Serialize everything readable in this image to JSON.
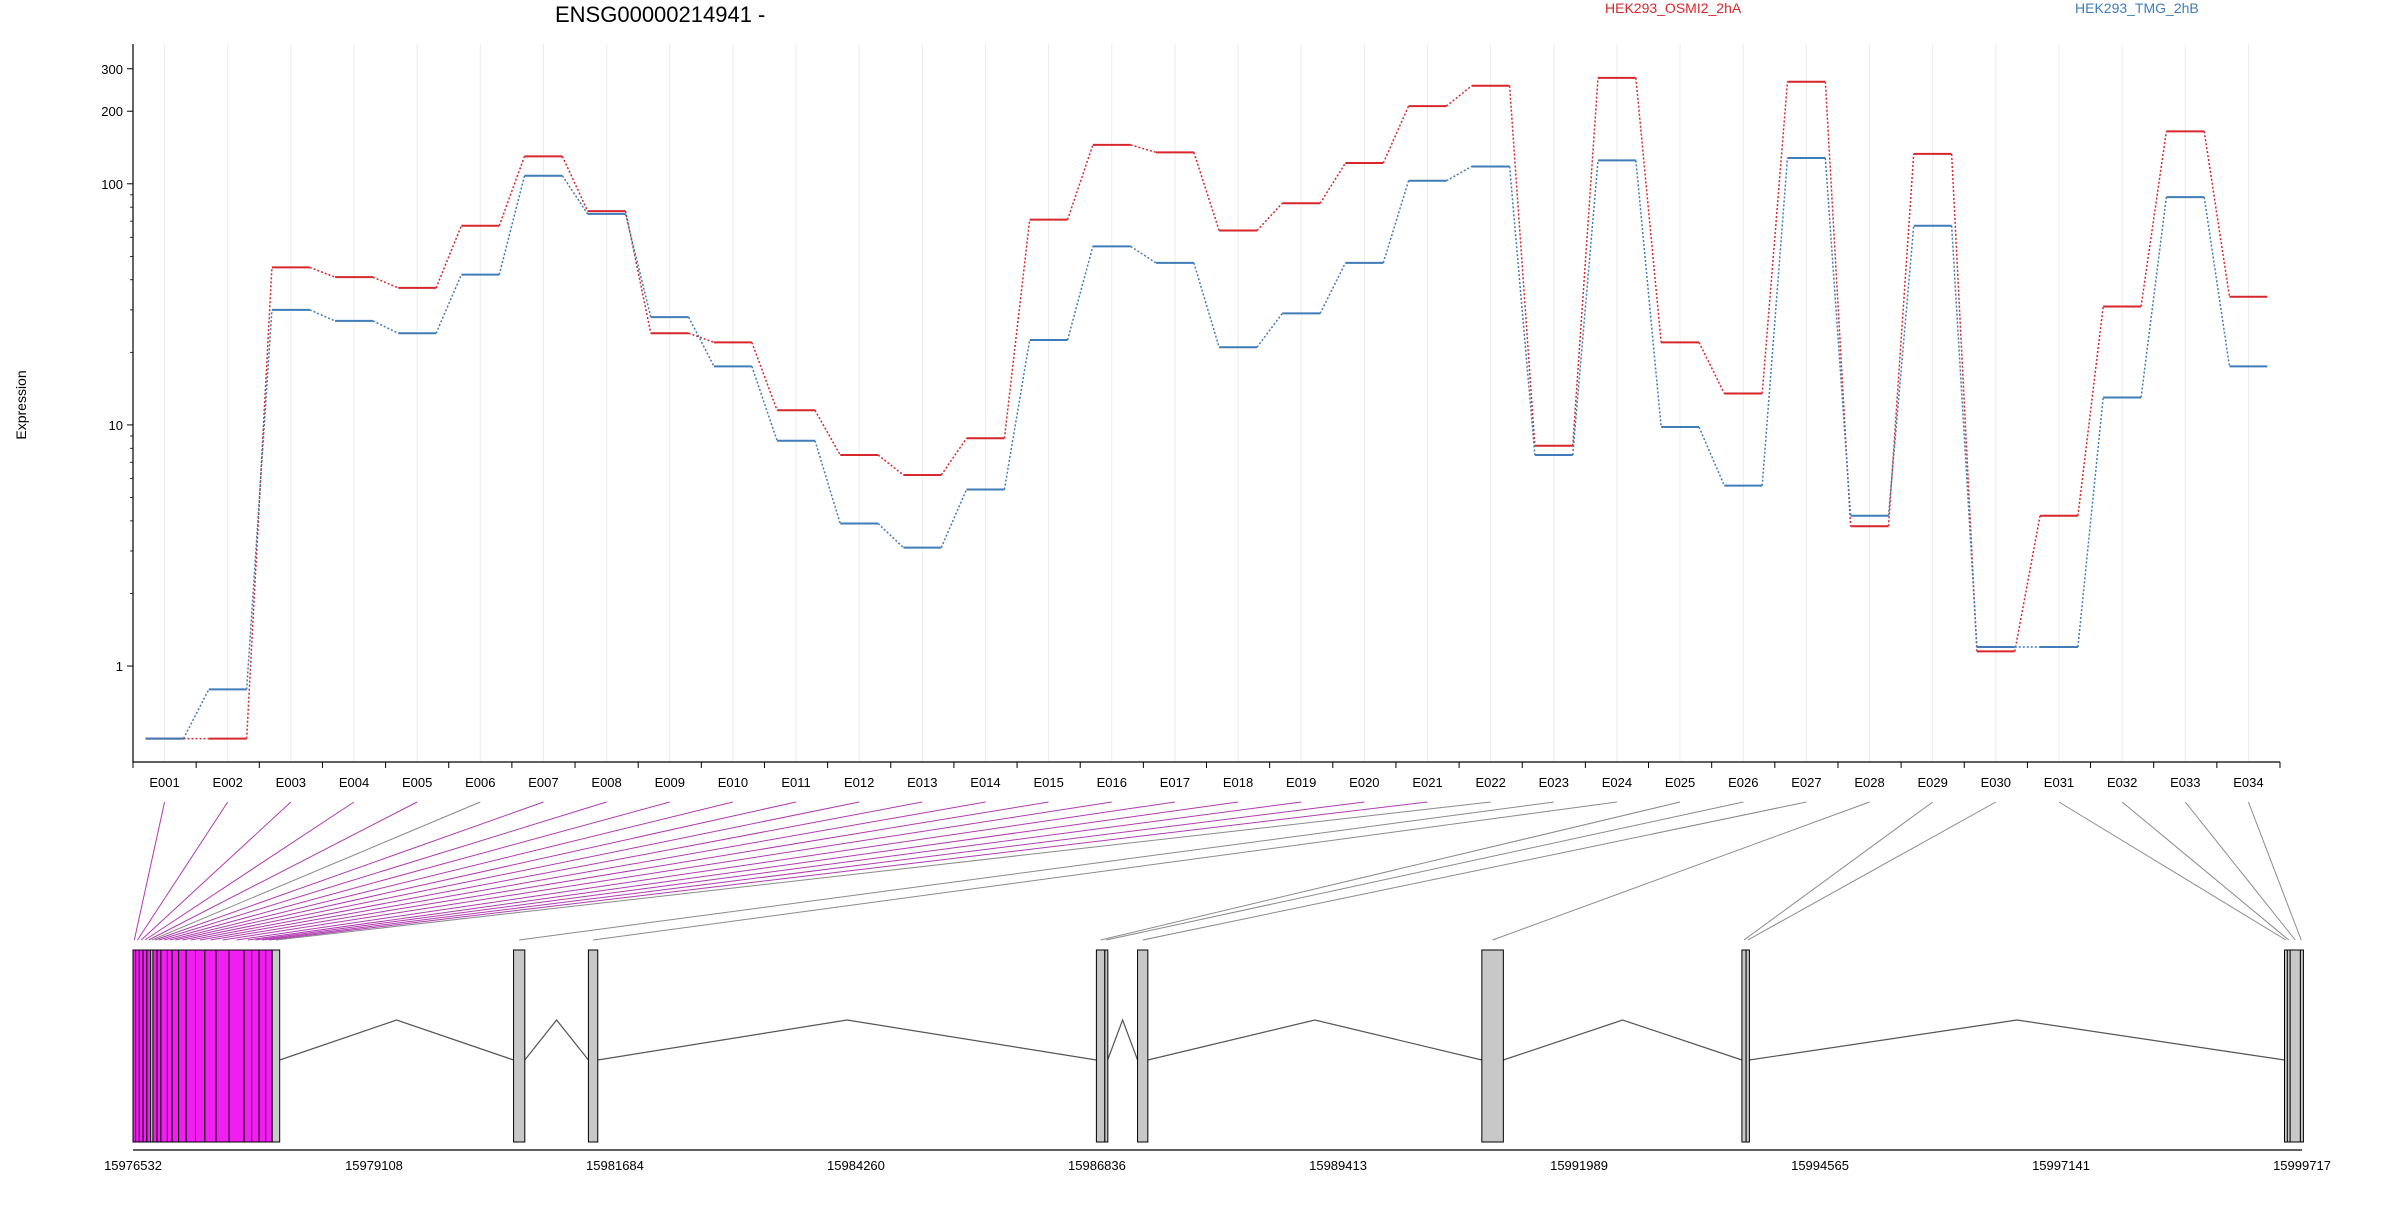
{
  "chart_data": {
    "type": "line",
    "title": "ENSG00000214941 -",
    "ylabel": "Expression",
    "yscale": "log",
    "ylim": [
      0.4,
      380
    ],
    "yticks": [
      {
        "value": 1,
        "label": "1"
      },
      {
        "value": 10,
        "label": "10"
      },
      {
        "value": 100,
        "label": "100"
      },
      {
        "value": 200,
        "label": "200"
      },
      {
        "value": 300,
        "label": "300"
      }
    ],
    "grid": true,
    "legend_position": "top",
    "categories": [
      "E001",
      "E002",
      "E003",
      "E004",
      "E005",
      "E006",
      "E007",
      "E008",
      "E009",
      "E010",
      "E011",
      "E012",
      "E013",
      "E014",
      "E015",
      "E016",
      "E017",
      "E018",
      "E019",
      "E020",
      "E021",
      "E022",
      "E023",
      "E024",
      "E025",
      "E026",
      "E027",
      "E028",
      "E029",
      "E030",
      "E031",
      "E032",
      "E033",
      "E034"
    ],
    "series": [
      {
        "name": "HEK293_OSMI2_2hA",
        "color": "#d7262c",
        "values": [
          0.5,
          0.5,
          45,
          41,
          37,
          67,
          130,
          77,
          24,
          22,
          11.5,
          7.5,
          6.2,
          8.8,
          71,
          145,
          135,
          64,
          83,
          122,
          210,
          255,
          8.2,
          275,
          22,
          13.5,
          265,
          3.8,
          133,
          1.15,
          4.2,
          31,
          165,
          34
        ]
      },
      {
        "name": "HEK293_TMG_2hB",
        "color": "#3f7cb8",
        "values": [
          0.5,
          0.8,
          30,
          27,
          24,
          42,
          108,
          75,
          28,
          17.5,
          8.6,
          3.9,
          3.1,
          5.4,
          22.5,
          55,
          47,
          21,
          29,
          47,
          103,
          118,
          7.5,
          125,
          9.8,
          5.6,
          128,
          4.2,
          67,
          1.2,
          1.2,
          13,
          88,
          17.5
        ]
      }
    ],
    "gene_model": {
      "coord_ticks": [
        15976532,
        15979108,
        15981684,
        15984260,
        15986836,
        15989413,
        15991989,
        15994565,
        15997141,
        15999717
      ],
      "range": [
        15976532,
        15999717
      ],
      "exons": [
        {
          "id": "E001",
          "start": 15976532,
          "end": 15976560,
          "highlight": true
        },
        {
          "id": "E002",
          "start": 15976560,
          "end": 15976600,
          "highlight": true
        },
        {
          "id": "E003",
          "start": 15976600,
          "end": 15976640,
          "highlight": true
        },
        {
          "id": "E004",
          "start": 15976640,
          "end": 15976680,
          "highlight": true
        },
        {
          "id": "E005",
          "start": 15976680,
          "end": 15976720,
          "highlight": true
        },
        {
          "id": "E006",
          "start": 15976720,
          "end": 15976745,
          "highlight": false
        },
        {
          "id": "E007",
          "start": 15976745,
          "end": 15976790,
          "highlight": true
        },
        {
          "id": "E008",
          "start": 15976790,
          "end": 15976830,
          "highlight": true
        },
        {
          "id": "E009",
          "start": 15976830,
          "end": 15976900,
          "highlight": true
        },
        {
          "id": "E010",
          "start": 15976900,
          "end": 15976950,
          "highlight": true
        },
        {
          "id": "E011",
          "start": 15976950,
          "end": 15977020,
          "highlight": true
        },
        {
          "id": "E012",
          "start": 15977020,
          "end": 15977100,
          "highlight": true
        },
        {
          "id": "E013",
          "start": 15977100,
          "end": 15977200,
          "highlight": true
        },
        {
          "id": "E014",
          "start": 15977200,
          "end": 15977300,
          "highlight": true
        },
        {
          "id": "E015",
          "start": 15977300,
          "end": 15977420,
          "highlight": true
        },
        {
          "id": "E016",
          "start": 15977420,
          "end": 15977560,
          "highlight": true
        },
        {
          "id": "E017",
          "start": 15977560,
          "end": 15977720,
          "highlight": true
        },
        {
          "id": "E018",
          "start": 15977720,
          "end": 15977800,
          "highlight": true
        },
        {
          "id": "E019",
          "start": 15977800,
          "end": 15977880,
          "highlight": true
        },
        {
          "id": "E020",
          "start": 15977880,
          "end": 15977950,
          "highlight": true
        },
        {
          "id": "E021",
          "start": 15977950,
          "end": 15978020,
          "highlight": true
        },
        {
          "id": "E022",
          "start": 15978020,
          "end": 15978100,
          "highlight": false
        },
        {
          "id": "E023",
          "start": 15980600,
          "end": 15980720,
          "highlight": false
        },
        {
          "id": "E024",
          "start": 15981400,
          "end": 15981500,
          "highlight": false
        },
        {
          "id": "E025",
          "start": 15986830,
          "end": 15986920,
          "highlight": false
        },
        {
          "id": "E026",
          "start": 15986920,
          "end": 15986950,
          "highlight": false
        },
        {
          "id": "E027",
          "start": 15987270,
          "end": 15987380,
          "highlight": false
        },
        {
          "id": "E028",
          "start": 15990950,
          "end": 15991180,
          "highlight": false
        },
        {
          "id": "E029",
          "start": 15993730,
          "end": 15993775,
          "highlight": false
        },
        {
          "id": "E030",
          "start": 15993775,
          "end": 15993810,
          "highlight": false
        },
        {
          "id": "E031",
          "start": 15999530,
          "end": 15999560,
          "highlight": false
        },
        {
          "id": "E032",
          "start": 15999560,
          "end": 15999590,
          "highlight": false
        },
        {
          "id": "E033",
          "start": 15999590,
          "end": 15999700,
          "highlight": false
        },
        {
          "id": "E034",
          "start": 15999700,
          "end": 15999717,
          "highlight": false
        }
      ]
    }
  }
}
